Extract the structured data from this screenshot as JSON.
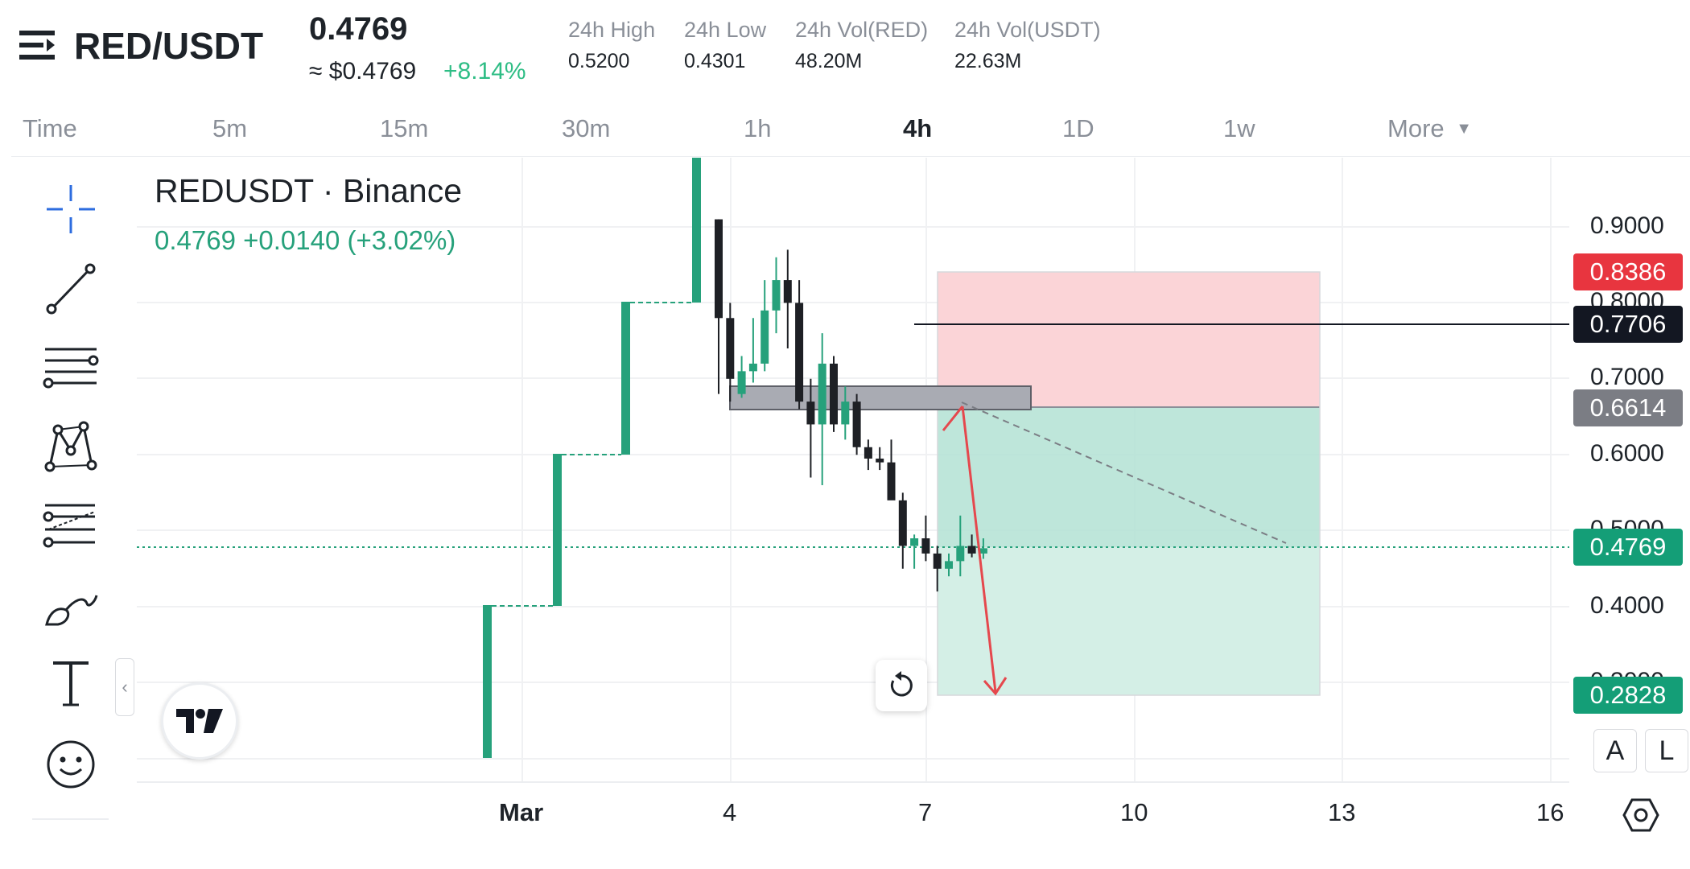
{
  "header": {
    "pair": "RED/USDT",
    "last_price": "0.4769",
    "usd_price": "≈ $0.4769",
    "change_pct": "+8.14%",
    "stats": [
      {
        "label": "24h High",
        "value": "0.5200"
      },
      {
        "label": "24h Low",
        "value": "0.4301"
      },
      {
        "label": "24h Vol(RED)",
        "value": "48.20M"
      },
      {
        "label": "24h Vol(USDT)",
        "value": "22.63M"
      }
    ]
  },
  "timeframes": [
    "Time",
    "5m",
    "15m",
    "30m",
    "1h",
    "4h",
    "1D",
    "1w",
    "More"
  ],
  "active_timeframe": "4h",
  "legend": {
    "title": "REDUSDT · Binance",
    "values": "0.4769  +0.0140 (+3.02%)"
  },
  "price_axis": {
    "ticks": [
      "0.9000",
      "0.8000",
      "0.7000",
      "0.6000",
      "0.5000",
      "0.4000",
      "0.3000"
    ],
    "labels": [
      {
        "value": "0.8386",
        "color": "#e8353f"
      },
      {
        "value": "0.7706",
        "color": "#131722"
      },
      {
        "value": "0.6614",
        "color": "#7b7d84"
      },
      {
        "value": "0.4769",
        "color": "#149e77"
      },
      {
        "value": "0.2828",
        "color": "#149e77"
      }
    ]
  },
  "date_axis": [
    "Mar",
    "4",
    "7",
    "10",
    "13",
    "16"
  ],
  "toolbar": {
    "tools": [
      "crosshair-icon",
      "trend-line-icon",
      "fib-lines-icon",
      "pattern-icon",
      "projection-icon",
      "brush-icon",
      "text-icon",
      "emoji-icon"
    ]
  },
  "buttons": {
    "auto_scale": "A",
    "log_scale": "L"
  },
  "chart_data": {
    "type": "candlestick",
    "series": [
      {
        "name": "REDUSDT",
        "values": [
          [
            0.91,
            0.91,
            0.68,
            0.78
          ],
          [
            0.78,
            0.8,
            0.67,
            0.7
          ],
          [
            0.68,
            0.73,
            0.675,
            0.71
          ],
          [
            0.71,
            0.78,
            0.695,
            0.72
          ],
          [
            0.72,
            0.83,
            0.71,
            0.79
          ],
          [
            0.79,
            0.86,
            0.76,
            0.83
          ],
          [
            0.83,
            0.87,
            0.74,
            0.8
          ],
          [
            0.8,
            0.83,
            0.66,
            0.67
          ],
          [
            0.67,
            0.7,
            0.57,
            0.64
          ],
          [
            0.64,
            0.76,
            0.56,
            0.72
          ],
          [
            0.72,
            0.73,
            0.63,
            0.64
          ],
          [
            0.64,
            0.69,
            0.62,
            0.67
          ],
          [
            0.67,
            0.68,
            0.6,
            0.61
          ],
          [
            0.61,
            0.62,
            0.58,
            0.595
          ],
          [
            0.595,
            0.61,
            0.58,
            0.59
          ],
          [
            0.59,
            0.62,
            0.56,
            0.54
          ],
          [
            0.54,
            0.55,
            0.45,
            0.48
          ],
          [
            0.48,
            0.495,
            0.45,
            0.49
          ],
          [
            0.49,
            0.52,
            0.46,
            0.47
          ],
          [
            0.47,
            0.48,
            0.42,
            0.45
          ],
          [
            0.45,
            0.47,
            0.44,
            0.46
          ],
          [
            0.46,
            0.52,
            0.44,
            0.48
          ],
          [
            0.48,
            0.495,
            0.465,
            0.47
          ],
          [
            0.47,
            0.49,
            0.463,
            0.4769
          ]
        ]
      }
    ],
    "ylim": [
      0.25,
      0.92
    ],
    "annotations": {
      "horizontal_line": 0.7706,
      "current_price": 0.4769,
      "zone": [
        0.6614,
        0.69
      ],
      "position": {
        "stop": 0.8386,
        "entry": 0.6614,
        "target": 0.2828
      }
    }
  }
}
